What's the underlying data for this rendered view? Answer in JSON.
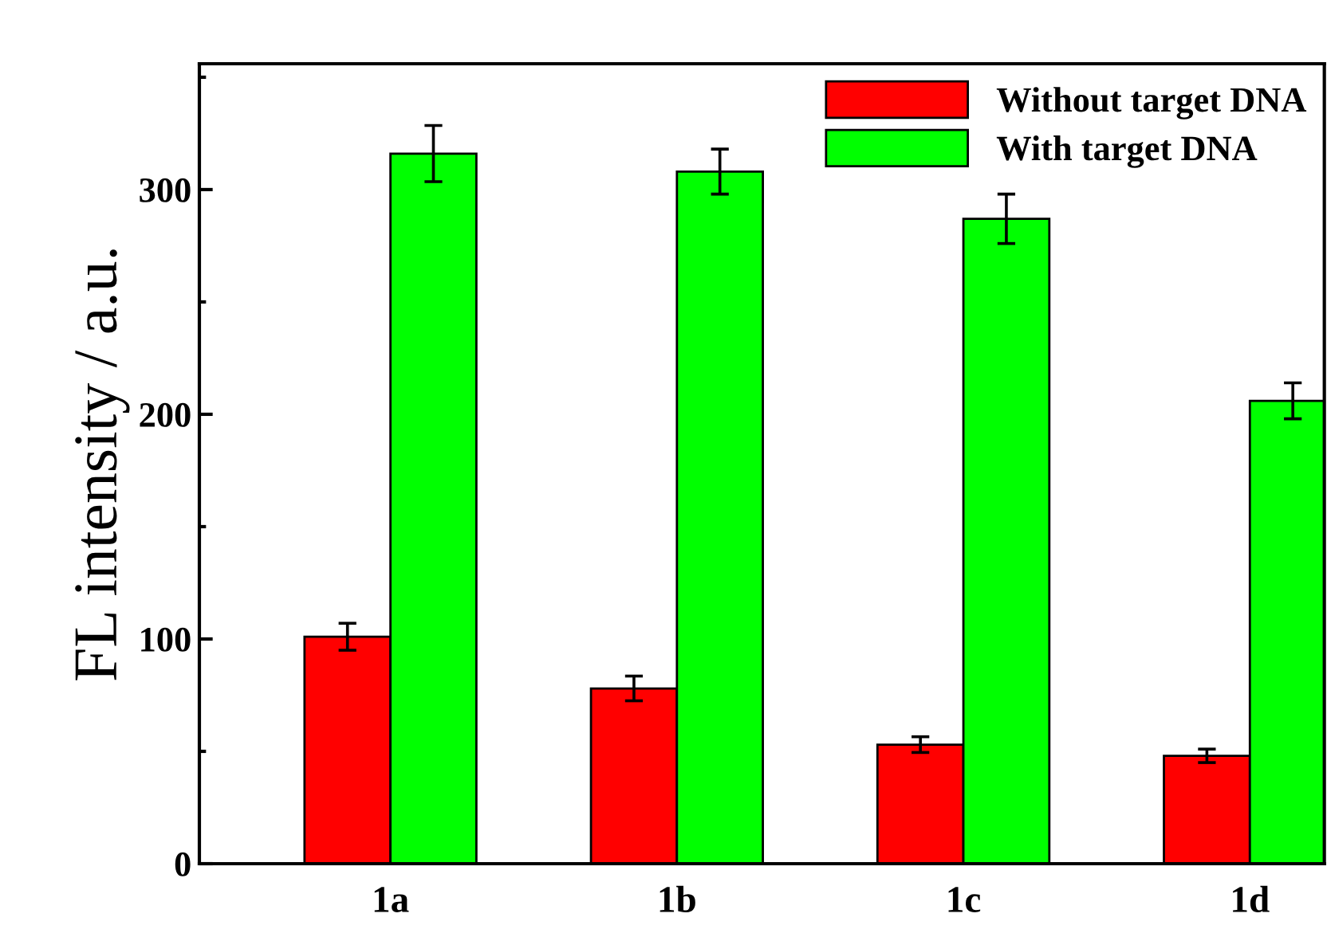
{
  "chart_data": {
    "type": "bar",
    "ylabel": "FL intensity / a.u.",
    "categories": [
      "1a",
      "1b",
      "1c",
      "1d"
    ],
    "series": [
      {
        "name": "Without target DNA",
        "color": "#ff0000",
        "values": [
          101,
          78,
          53,
          48
        ],
        "errors": [
          6,
          5.5,
          3.5,
          3
        ]
      },
      {
        "name": "With target DNA",
        "color": "#00ff00",
        "values": [
          316,
          308,
          287,
          206
        ],
        "errors": [
          12.5,
          10,
          11,
          8
        ]
      }
    ],
    "ylim": [
      0,
      356
    ],
    "yticks": [
      0,
      {
        "value": 50,
        "label": null
      },
      100,
      {
        "value": 150,
        "label": null
      },
      200,
      {
        "value": 250,
        "label": null
      },
      300,
      {
        "value": 350,
        "label": null
      }
    ],
    "legend": "top right",
    "grid": false
  }
}
